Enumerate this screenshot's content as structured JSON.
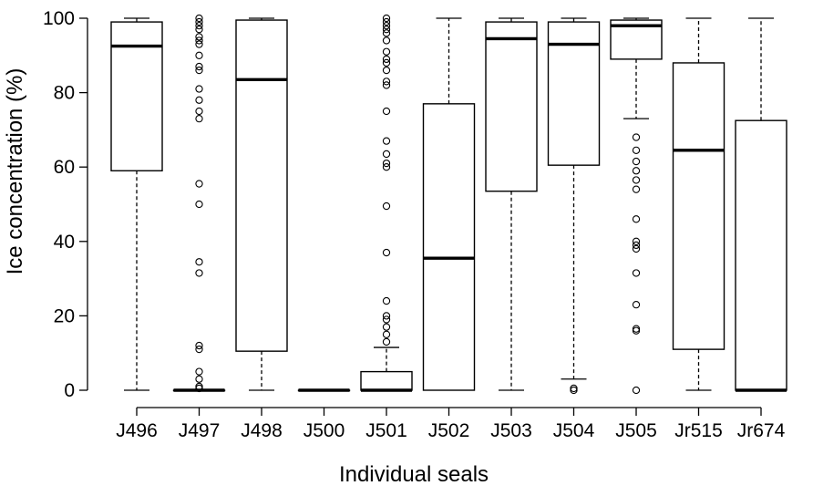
{
  "chart_data": {
    "type": "box",
    "title": "",
    "xlabel": "Individual seals",
    "ylabel": "Ice concentration (%)",
    "ylim": [
      0,
      100
    ],
    "yticks": [
      0,
      20,
      40,
      60,
      80,
      100
    ],
    "grid": false,
    "legend": "none",
    "categories": [
      "J496",
      "J497",
      "J498",
      "J500",
      "J501",
      "J502",
      "J503",
      "J504",
      "J505",
      "Jr515",
      "Jr674"
    ],
    "boxes": [
      {
        "name": "J496",
        "min": 0,
        "q1": 59,
        "median": 92.5,
        "q3": 99,
        "max": 100,
        "outliers": []
      },
      {
        "name": "J497",
        "min": 0,
        "q1": 0,
        "median": 0,
        "q3": 0,
        "max": 0,
        "outliers": [
          100,
          99,
          98,
          97,
          95,
          94,
          93,
          90,
          87,
          86,
          81,
          78,
          75,
          73,
          55.5,
          50,
          34.5,
          31.5,
          12,
          11,
          5,
          3,
          1,
          0.5
        ]
      },
      {
        "name": "J498",
        "min": 0,
        "q1": 10.5,
        "median": 83.5,
        "q3": 99.5,
        "max": 100,
        "outliers": []
      },
      {
        "name": "J500",
        "min": 0,
        "q1": 0,
        "median": 0,
        "q3": 0,
        "max": 0,
        "outliers": []
      },
      {
        "name": "J501",
        "min": 0,
        "q1": 0,
        "median": 0,
        "q3": 5,
        "max": 11.5,
        "outliers": [
          100,
          99,
          98,
          97,
          96,
          94,
          91,
          89,
          88,
          86,
          83,
          82,
          75,
          67,
          63.5,
          61,
          60,
          49.5,
          37,
          24,
          20,
          19,
          17,
          15,
          13
        ]
      },
      {
        "name": "J502",
        "min": 0,
        "q1": 0,
        "median": 35.5,
        "q3": 77,
        "max": 100,
        "outliers": []
      },
      {
        "name": "J503",
        "min": 0,
        "q1": 53.5,
        "median": 94.5,
        "q3": 99,
        "max": 100,
        "outliers": []
      },
      {
        "name": "J504",
        "min": 3,
        "q1": 60.5,
        "median": 93,
        "q3": 99,
        "max": 100,
        "outliers": [
          0.5,
          0
        ]
      },
      {
        "name": "J505",
        "min": 73,
        "q1": 89,
        "median": 98,
        "q3": 99.5,
        "max": 100,
        "outliers": [
          68,
          64.5,
          61.5,
          59,
          56.5,
          54,
          46,
          40,
          39,
          38,
          31.5,
          23,
          16.5,
          16,
          0
        ]
      },
      {
        "name": "Jr515",
        "min": 0,
        "q1": 11,
        "median": 64.5,
        "q3": 88,
        "max": 100,
        "outliers": []
      },
      {
        "name": "Jr674",
        "min": 0,
        "q1": 0,
        "median": 0,
        "q3": 72.5,
        "max": 100,
        "outliers": []
      }
    ]
  }
}
